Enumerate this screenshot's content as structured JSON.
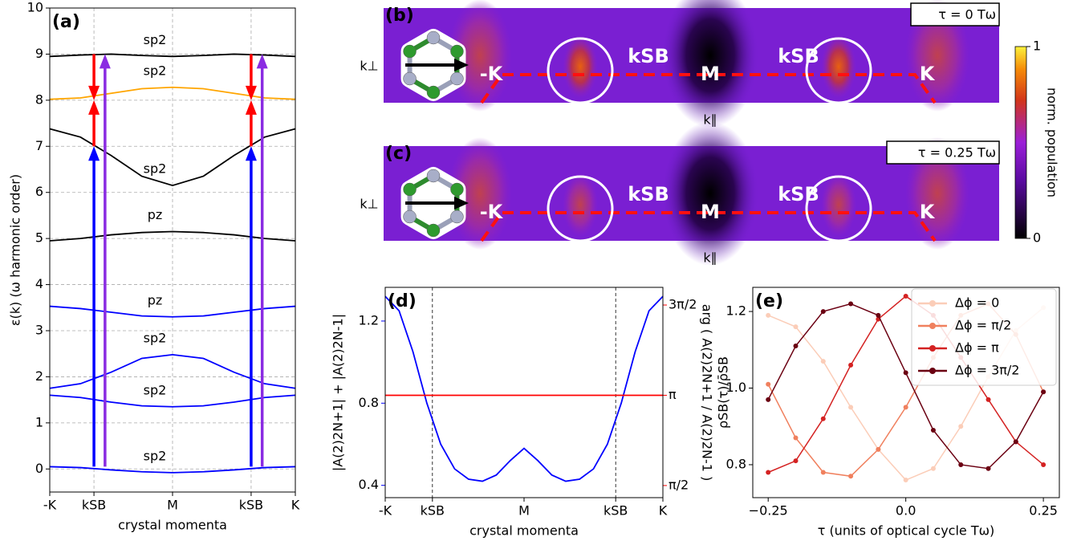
{
  "chart_data": [
    {
      "type": "line",
      "title": "(a)",
      "xlabel": "crystal momenta",
      "ylabel": "ε(k)  (ω harmonic order)",
      "xlim": [
        0,
        1
      ],
      "ylim": [
        -0.5,
        10
      ],
      "xticks": [
        {
          "value": 0,
          "label": "-K"
        },
        {
          "value": 0.18,
          "label": "kSB"
        },
        {
          "value": 0.5,
          "label": "M"
        },
        {
          "value": 0.82,
          "label": "kSB"
        },
        {
          "value": 1,
          "label": "K"
        }
      ],
      "yticks": [
        0,
        1,
        2,
        3,
        4,
        5,
        6,
        7,
        8,
        9,
        10
      ],
      "grid": true,
      "x": [
        0,
        0.125,
        0.25,
        0.375,
        0.5,
        0.625,
        0.75,
        0.875,
        1
      ],
      "series": [
        {
          "name": "sp2",
          "color": "#000000",
          "values": [
            8.95,
            8.98,
            9.0,
            8.97,
            8.95,
            8.97,
            9.0,
            8.98,
            8.95
          ]
        },
        {
          "name": "sp2",
          "color": "#ffa500",
          "values": [
            8.02,
            8.05,
            8.15,
            8.25,
            8.28,
            8.25,
            8.15,
            8.05,
            8.02
          ]
        },
        {
          "name": "sp2",
          "color": "#000000",
          "values": [
            7.38,
            7.2,
            6.8,
            6.35,
            6.15,
            6.35,
            6.8,
            7.2,
            7.38
          ]
        },
        {
          "name": "pz",
          "color": "#000000",
          "values": [
            4.95,
            5.0,
            5.08,
            5.13,
            5.15,
            5.13,
            5.08,
            5.0,
            4.95
          ]
        },
        {
          "name": "pz",
          "color": "#0000ff",
          "values": [
            3.53,
            3.48,
            3.4,
            3.32,
            3.3,
            3.32,
            3.4,
            3.48,
            3.53
          ]
        },
        {
          "name": "sp2",
          "color": "#0000ff",
          "values": [
            1.75,
            1.85,
            2.1,
            2.4,
            2.48,
            2.4,
            2.1,
            1.85,
            1.75
          ]
        },
        {
          "name": "sp2",
          "color": "#0000ff",
          "values": [
            1.6,
            1.55,
            1.45,
            1.37,
            1.35,
            1.37,
            1.45,
            1.55,
            1.6
          ]
        },
        {
          "name": "sp2",
          "color": "#0000ff",
          "values": [
            0.05,
            0.03,
            -0.02,
            -0.06,
            -0.08,
            -0.06,
            -0.02,
            0.03,
            0.05
          ]
        }
      ],
      "arrows": [
        {
          "x": 0.18,
          "y": [
            0.05,
            7.0
          ],
          "color": "#0000ff"
        },
        {
          "x": 0.225,
          "y": [
            0.05,
            9.0
          ],
          "color": "#8a2be2"
        },
        {
          "x": 0.18,
          "y": [
            7.0,
            8.0
          ],
          "color": "#ff0000"
        },
        {
          "x": 0.18,
          "y": [
            9.0,
            8.0
          ],
          "color": "#ff0000"
        },
        {
          "x": 0.82,
          "y": [
            0.05,
            7.0
          ],
          "color": "#0000ff"
        },
        {
          "x": 0.865,
          "y": [
            0.05,
            9.0
          ],
          "color": "#8a2be2"
        },
        {
          "x": 0.82,
          "y": [
            7.0,
            8.0
          ],
          "color": "#ff0000"
        },
        {
          "x": 0.82,
          "y": [
            9.0,
            8.0
          ],
          "color": "#ff0000"
        }
      ]
    },
    {
      "type": "line",
      "title": "(d)",
      "xlabel": "crystal momenta",
      "ylabel": "|A(2)2N+1| + |A(2)2N-1|",
      "y2label": "arg ( A(2)2N+1 / A(2)2N-1 )",
      "xlim": [
        0,
        1
      ],
      "ylim": [
        0.34,
        1.364
      ],
      "y2lim": [
        1.36,
        5.02
      ],
      "xticks": [
        {
          "value": 0,
          "label": "-K"
        },
        {
          "value": 0.17,
          "label": "kSB"
        },
        {
          "value": 0.5,
          "label": "M"
        },
        {
          "value": 0.83,
          "label": "kSB"
        },
        {
          "value": 1,
          "label": "K"
        }
      ],
      "yticks": [
        0.4,
        0.8,
        1.2
      ],
      "y2ticks": [
        {
          "value": 1.5708,
          "label": "π/2"
        },
        {
          "value": 3.1416,
          "label": "π"
        },
        {
          "value": 4.7124,
          "label": "3π/2"
        }
      ],
      "grid": false,
      "vlines": [
        0.17,
        0.83
      ],
      "series": [
        {
          "color": "#0000ff",
          "x": [
            0,
            0.05,
            0.1,
            0.15,
            0.2,
            0.25,
            0.3,
            0.35,
            0.4,
            0.45,
            0.5,
            0.55,
            0.6,
            0.65,
            0.7,
            0.75,
            0.8,
            0.85,
            0.9,
            0.95,
            1
          ],
          "values": [
            1.32,
            1.25,
            1.05,
            0.8,
            0.6,
            0.48,
            0.43,
            0.42,
            0.45,
            0.52,
            0.58,
            0.52,
            0.45,
            0.42,
            0.43,
            0.48,
            0.6,
            0.8,
            1.05,
            1.25,
            1.32
          ]
        },
        {
          "color": "#ff0000",
          "axis": "y2",
          "x": [
            0,
            1
          ],
          "values": [
            3.1416,
            3.1416
          ]
        }
      ]
    },
    {
      "type": "line",
      "title": "(e)",
      "xlabel": "τ (units of optical cycle Tω)",
      "ylabel": "ρSB(τ)/ρ̄SB",
      "xlim": [
        -0.278,
        0.279
      ],
      "ylim": [
        0.714,
        1.263
      ],
      "xticks": [
        {
          "value": -0.25,
          "label": "−0.25"
        },
        {
          "value": 0,
          "label": "0.0"
        },
        0.25
      ],
      "yticks": [
        0.8,
        {
          "value": 1,
          "label": "1.0"
        },
        1.2
      ],
      "grid": false,
      "markers": true,
      "legend": "upper right",
      "x": [
        -0.25,
        -0.2,
        -0.15,
        -0.1,
        -0.05,
        0,
        0.05,
        0.1,
        0.15,
        0.2,
        0.25
      ],
      "series": [
        {
          "name": "Δϕ = 0",
          "color": "#fbcdb8",
          "values": [
            1.19,
            1.16,
            1.07,
            0.95,
            0.84,
            0.76,
            0.79,
            0.9,
            1.03,
            1.15,
            1.21
          ]
        },
        {
          "name": "Δϕ = π/2",
          "color": "#f0805e",
          "values": [
            1.01,
            0.87,
            0.78,
            0.77,
            0.84,
            0.95,
            1.08,
            1.19,
            1.22,
            1.14,
            0.99
          ]
        },
        {
          "name": "Δϕ = π",
          "color": "#d42222",
          "values": [
            0.78,
            0.81,
            0.92,
            1.06,
            1.18,
            1.24,
            1.19,
            1.08,
            0.97,
            0.86,
            0.8
          ]
        },
        {
          "name": "Δϕ = 3π/2",
          "color": "#6b0012",
          "values": [
            0.97,
            1.11,
            1.2,
            1.22,
            1.19,
            1.04,
            0.89,
            0.8,
            0.79,
            0.86,
            0.99
          ]
        }
      ]
    }
  ],
  "maps": {
    "panels": [
      {
        "label": "(b)",
        "time": "τ = 0 Tω",
        "kperp": "k⊥",
        "kpar": "k∥",
        "points": [
          "-K",
          "kSB",
          "M",
          "kSB",
          "K"
        ]
      },
      {
        "label": "(c)",
        "time": "τ = 0.25 Tω",
        "kperp": "k⊥",
        "kpar": "k∥",
        "points": [
          "-K",
          "kSB",
          "M",
          "kSB",
          "K"
        ]
      }
    ],
    "colorbar": {
      "label": "norm. population",
      "clim": [
        0,
        1
      ],
      "ticks": [
        0,
        1
      ]
    }
  }
}
